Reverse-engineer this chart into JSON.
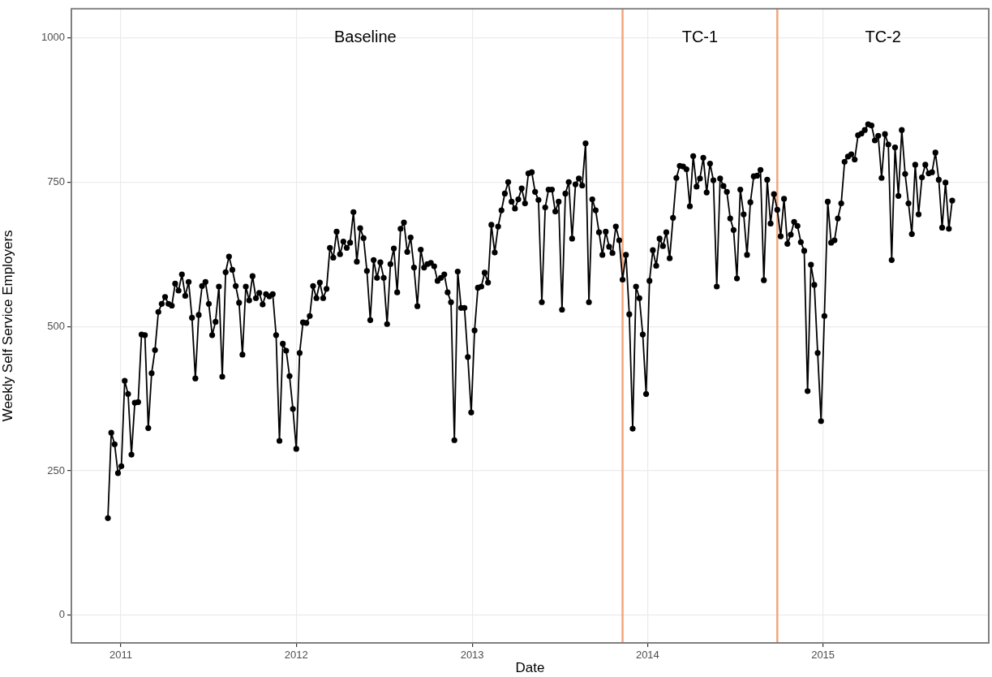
{
  "chart_data": {
    "type": "line",
    "xlabel": "Date",
    "ylabel": "Weekly Self Service Employers",
    "xlim": [
      "2010-09-20",
      "2015-12-12"
    ],
    "ylim": [
      -48,
      1050
    ],
    "xticks": [
      {
        "value": "2011-01-01",
        "label": "2011"
      },
      {
        "value": "2012-01-01",
        "label": "2012"
      },
      {
        "value": "2013-01-01",
        "label": "2013"
      },
      {
        "value": "2014-01-01",
        "label": "2014"
      },
      {
        "value": "2015-01-01",
        "label": "2015"
      }
    ],
    "yticks": [
      0,
      250,
      500,
      750,
      1000
    ],
    "grid": true,
    "marker": "circle",
    "line_style": "solid",
    "ref_lines": [
      {
        "axis": "x",
        "value": "2013-11-10",
        "color": "#f4a57a"
      },
      {
        "axis": "x",
        "value": "2014-09-28",
        "color": "#f4a57a"
      }
    ],
    "annotations": [
      "Baseline",
      "TC-1",
      "TC-2"
    ],
    "x": [
      "2010-12-05",
      "2010-12-12",
      "2010-12-19",
      "2010-12-26",
      "2011-01-02",
      "2011-01-09",
      "2011-01-16",
      "2011-01-23",
      "2011-01-30",
      "2011-02-06",
      "2011-02-13",
      "2011-02-20",
      "2011-02-27",
      "2011-03-06",
      "2011-03-13",
      "2011-03-20",
      "2011-03-27",
      "2011-04-03",
      "2011-04-10",
      "2011-04-17",
      "2011-04-24",
      "2011-05-01",
      "2011-05-08",
      "2011-05-15",
      "2011-05-22",
      "2011-05-29",
      "2011-06-05",
      "2011-06-12",
      "2011-06-19",
      "2011-06-26",
      "2011-07-03",
      "2011-07-10",
      "2011-07-17",
      "2011-07-24",
      "2011-07-31",
      "2011-08-07",
      "2011-08-14",
      "2011-08-21",
      "2011-08-28",
      "2011-09-04",
      "2011-09-11",
      "2011-09-18",
      "2011-09-25",
      "2011-10-02",
      "2011-10-09",
      "2011-10-16",
      "2011-10-23",
      "2011-10-30",
      "2011-11-06",
      "2011-11-13",
      "2011-11-20",
      "2011-11-27",
      "2011-12-04",
      "2011-12-11",
      "2011-12-18",
      "2011-12-25",
      "2012-01-01",
      "2012-01-08",
      "2012-01-15",
      "2012-01-22",
      "2012-01-29",
      "2012-02-05",
      "2012-02-12",
      "2012-02-19",
      "2012-02-26",
      "2012-03-04",
      "2012-03-11",
      "2012-03-18",
      "2012-03-25",
      "2012-04-01",
      "2012-04-08",
      "2012-04-15",
      "2012-04-22",
      "2012-04-29",
      "2012-05-06",
      "2012-05-13",
      "2012-05-20",
      "2012-05-27",
      "2012-06-03",
      "2012-06-10",
      "2012-06-17",
      "2012-06-24",
      "2012-07-01",
      "2012-07-08",
      "2012-07-15",
      "2012-07-22",
      "2012-07-29",
      "2012-08-05",
      "2012-08-12",
      "2012-08-19",
      "2012-08-26",
      "2012-09-02",
      "2012-09-09",
      "2012-09-16",
      "2012-09-23",
      "2012-09-30",
      "2012-10-07",
      "2012-10-14",
      "2012-10-21",
      "2012-10-28",
      "2012-11-04",
      "2012-11-11",
      "2012-11-18",
      "2012-11-25",
      "2012-12-02",
      "2012-12-09",
      "2012-12-16",
      "2012-12-23",
      "2012-12-30",
      "2013-01-06",
      "2013-01-13",
      "2013-01-20",
      "2013-01-27",
      "2013-02-03",
      "2013-02-10",
      "2013-02-17",
      "2013-02-24",
      "2013-03-03",
      "2013-03-10",
      "2013-03-17",
      "2013-03-24",
      "2013-03-31",
      "2013-04-07",
      "2013-04-14",
      "2013-04-21",
      "2013-04-28",
      "2013-05-05",
      "2013-05-12",
      "2013-05-19",
      "2013-05-26",
      "2013-06-02",
      "2013-06-09",
      "2013-06-16",
      "2013-06-23",
      "2013-06-30",
      "2013-07-07",
      "2013-07-14",
      "2013-07-21",
      "2013-07-28",
      "2013-08-04",
      "2013-08-11",
      "2013-08-18",
      "2013-08-25",
      "2013-09-01",
      "2013-09-08",
      "2013-09-15",
      "2013-09-22",
      "2013-09-29",
      "2013-10-06",
      "2013-10-13",
      "2013-10-20",
      "2013-10-27",
      "2013-11-03",
      "2013-11-10",
      "2013-11-17",
      "2013-11-24",
      "2013-12-01",
      "2013-12-08",
      "2013-12-15",
      "2013-12-22",
      "2013-12-29",
      "2014-01-05",
      "2014-01-12",
      "2014-01-19",
      "2014-01-26",
      "2014-02-02",
      "2014-02-09",
      "2014-02-16",
      "2014-02-23",
      "2014-03-02",
      "2014-03-09",
      "2014-03-16",
      "2014-03-23",
      "2014-03-30",
      "2014-04-06",
      "2014-04-13",
      "2014-04-20",
      "2014-04-27",
      "2014-05-04",
      "2014-05-11",
      "2014-05-18",
      "2014-05-25",
      "2014-06-01",
      "2014-06-08",
      "2014-06-15",
      "2014-06-22",
      "2014-06-29",
      "2014-07-06",
      "2014-07-13",
      "2014-07-20",
      "2014-07-27",
      "2014-08-03",
      "2014-08-10",
      "2014-08-17",
      "2014-08-24",
      "2014-08-31",
      "2014-09-07",
      "2014-09-14",
      "2014-09-21",
      "2014-09-28",
      "2014-10-05",
      "2014-10-12",
      "2014-10-19",
      "2014-10-26",
      "2014-11-02",
      "2014-11-09",
      "2014-11-16",
      "2014-11-23",
      "2014-11-30",
      "2014-12-07",
      "2014-12-14",
      "2014-12-21",
      "2014-12-28",
      "2015-01-04",
      "2015-01-11",
      "2015-01-18",
      "2015-01-25",
      "2015-02-01",
      "2015-02-08",
      "2015-02-15",
      "2015-02-22",
      "2015-03-01",
      "2015-03-08",
      "2015-03-15",
      "2015-03-22",
      "2015-03-29",
      "2015-04-05",
      "2015-04-12",
      "2015-04-19",
      "2015-04-26",
      "2015-05-03",
      "2015-05-10",
      "2015-05-17",
      "2015-05-24",
      "2015-05-31",
      "2015-06-07",
      "2015-06-14",
      "2015-06-21",
      "2015-06-28",
      "2015-07-05",
      "2015-07-12",
      "2015-07-19",
      "2015-07-26",
      "2015-08-02",
      "2015-08-09",
      "2015-08-16",
      "2015-08-23",
      "2015-08-30",
      "2015-09-06",
      "2015-09-13",
      "2015-09-20",
      "2015-09-27"
    ],
    "series": [
      {
        "color": "#000000",
        "values": [
          168,
          316,
          296,
          246,
          258,
          406,
          383,
          278,
          368,
          369,
          486,
          485,
          324,
          419,
          459,
          525,
          539,
          551,
          539,
          536,
          574,
          562,
          590,
          553,
          577,
          515,
          410,
          520,
          570,
          577,
          539,
          485,
          508,
          569,
          413,
          594,
          621,
          598,
          570,
          541,
          451,
          569,
          545,
          587,
          549,
          558,
          538,
          556,
          552,
          556,
          485,
          302,
          470,
          458,
          414,
          357,
          288,
          454,
          507,
          506,
          518,
          570,
          549,
          576,
          549,
          565,
          636,
          619,
          664,
          625,
          647,
          636,
          645,
          698,
          612,
          670,
          653,
          596,
          511,
          615,
          584,
          611,
          584,
          504,
          608,
          635,
          559,
          669,
          680,
          629,
          654,
          602,
          535,
          633,
          602,
          608,
          610,
          604,
          579,
          584,
          590,
          559,
          542,
          303,
          595,
          532,
          532,
          447,
          351,
          493,
          567,
          569,
          593,
          576,
          676,
          628,
          673,
          701,
          730,
          750,
          716,
          704,
          720,
          739,
          713,
          765,
          767,
          733,
          719,
          542,
          706,
          737,
          737,
          699,
          716,
          529,
          730,
          750,
          652,
          746,
          756,
          744,
          817,
          542,
          720,
          701,
          663,
          624,
          664,
          638,
          627,
          673,
          649,
          581,
          624,
          521,
          323,
          569,
          549,
          486,
          383,
          579,
          632,
          605,
          652,
          639,
          663,
          618,
          688,
          757,
          778,
          777,
          772,
          708,
          795,
          742,
          756,
          792,
          732,
          782,
          753,
          569,
          756,
          743,
          733,
          687,
          667,
          583,
          737,
          694,
          624,
          715,
          760,
          761,
          771,
          580,
          754,
          678,
          729,
          702,
          656,
          721,
          643,
          659,
          681,
          674,
          646,
          631,
          388,
          607,
          572,
          454,
          336,
          518,
          716,
          645,
          649,
          687,
          713,
          785,
          794,
          798,
          789,
          831,
          834,
          840,
          850,
          848,
          822,
          830,
          757,
          833,
          815,
          615,
          810,
          726,
          840,
          764,
          713,
          660,
          780,
          694,
          758,
          780,
          765,
          767,
          801,
          754,
          671,
          749,
          669,
          718
        ]
      }
    ]
  }
}
